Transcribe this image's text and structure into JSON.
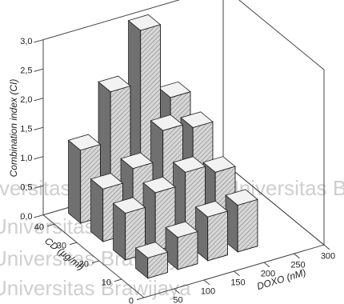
{
  "watermark": "Universitas Brawijaya",
  "chart_data": {
    "type": "bar3d",
    "zlabel": "Combination index (CI)",
    "xlabel": "DOXO (nM)",
    "ylabel": "CD (µg/ml)",
    "x": [
      50,
      100,
      150,
      200
    ],
    "y": [
      10,
      20,
      30,
      40
    ],
    "values": [
      [
        0.35,
        0.55,
        0.75,
        0.8
      ],
      [
        0.8,
        1.0,
        1.2,
        1.05
      ],
      [
        0.9,
        1.1,
        1.6,
        1.5
      ],
      [
        1.25,
        2.1,
        3.0,
        1.7
      ]
    ],
    "xlim": [
      0,
      300
    ],
    "xticks": [
      50,
      100,
      150,
      200,
      250,
      300
    ],
    "ylim": [
      0,
      45
    ],
    "yticks": [
      0,
      10,
      20,
      30,
      40
    ],
    "zlim": [
      0,
      3
    ],
    "zticks": [
      {
        "value": 0,
        "label": "0,0"
      },
      {
        "value": 0.5,
        "label": "0,5"
      },
      {
        "value": 1,
        "label": "1,0"
      },
      {
        "value": 1.5,
        "label": "1,5"
      },
      {
        "value": 2,
        "label": "2,0"
      },
      {
        "value": 2.5,
        "label": "2,5"
      },
      {
        "value": 3,
        "label": "3,0"
      }
    ],
    "color": "#d6d6d6"
  }
}
